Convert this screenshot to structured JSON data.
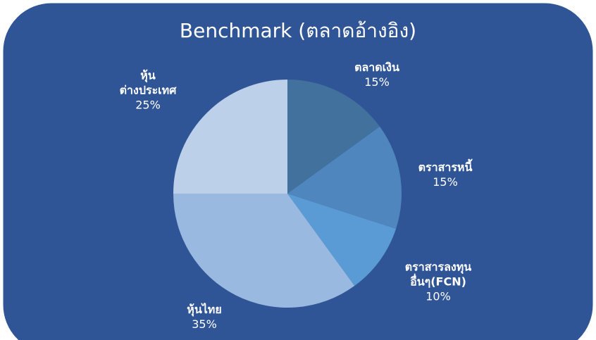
{
  "chart_data": {
    "type": "pie",
    "title": "Benchmark (ตลาดอ้างอิง)",
    "categories": [
      "ตลาดเงิน",
      "ตราสารหนี้",
      "ตราสารลงทุน\nอื่นๆ(FCN)",
      "หุ้นไทย",
      "หุ้น\nต่างประเทศ"
    ],
    "values": [
      15,
      15,
      10,
      35,
      25
    ],
    "value_labels": [
      "15%",
      "15%",
      "10%",
      "35%",
      "25%"
    ],
    "colors": [
      "#41719c",
      "#4e86bd",
      "#5a9bd5",
      "#9ab9e0",
      "#bdd0ea"
    ]
  }
}
